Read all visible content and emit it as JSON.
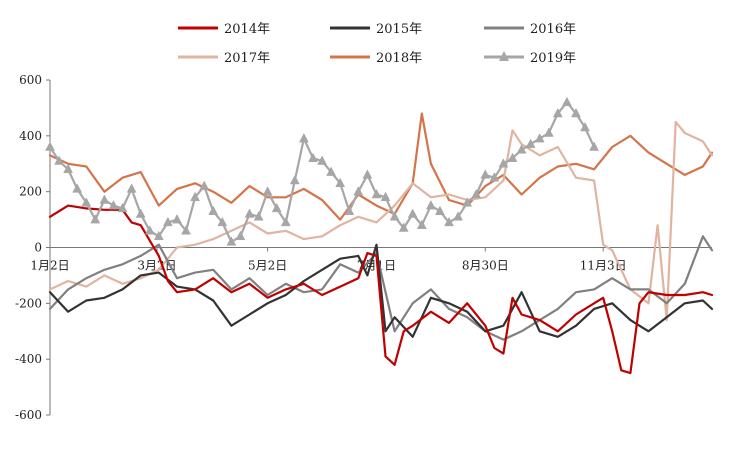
{
  "chart_data": {
    "type": "line",
    "title": "",
    "xlabel": "",
    "ylabel": "",
    "ylim": [
      -600,
      600
    ],
    "yticks": [
      "600",
      "400",
      "200",
      "0",
      "-200",
      "-400",
      "-600"
    ],
    "ytick_values": [
      600,
      400,
      200,
      0,
      -200,
      -400,
      -600
    ],
    "x_tick_labels": [
      "1月2日",
      "3月2日",
      "5月2日",
      "7月1日",
      "8月30日",
      "11月3日"
    ],
    "x_tick_days": [
      0,
      59,
      120,
      180,
      240,
      305
    ],
    "x_range_days": [
      0,
      365
    ],
    "grid": false,
    "legend_position": "top",
    "series": [
      {
        "name": "2014年",
        "color": "#c00000",
        "marker": "none",
        "x": [
          0,
          10,
          20,
          30,
          40,
          45,
          50,
          60,
          65,
          70,
          80,
          90,
          100,
          110,
          120,
          130,
          140,
          150,
          160,
          170,
          175,
          180,
          185,
          190,
          195,
          200,
          210,
          220,
          230,
          240,
          245,
          250,
          255,
          260,
          270,
          280,
          290,
          300,
          305,
          310,
          315,
          320,
          325,
          330,
          340,
          350,
          360,
          365
        ],
        "y": [
          110,
          150,
          140,
          135,
          135,
          90,
          80,
          -30,
          -120,
          -160,
          -150,
          -110,
          -160,
          -130,
          -180,
          -150,
          -130,
          -170,
          -140,
          -110,
          -20,
          -30,
          -390,
          -420,
          -300,
          -280,
          -230,
          -270,
          -200,
          -280,
          -360,
          -380,
          -180,
          -240,
          -260,
          -300,
          -240,
          -200,
          -180,
          -300,
          -440,
          -450,
          -200,
          -160,
          -170,
          -170,
          -160,
          -170
        ]
      },
      {
        "name": "2015年",
        "color": "#333333",
        "marker": "none",
        "x": [
          0,
          10,
          20,
          30,
          40,
          50,
          60,
          70,
          80,
          90,
          100,
          110,
          120,
          130,
          140,
          150,
          160,
          170,
          175,
          180,
          185,
          190,
          200,
          205,
          210,
          220,
          230,
          240,
          250,
          260,
          270,
          280,
          290,
          300,
          310,
          320,
          330,
          340,
          350,
          360,
          365
        ],
        "y": [
          -160,
          -230,
          -190,
          -180,
          -150,
          -100,
          -90,
          -140,
          -150,
          -190,
          -280,
          -240,
          -200,
          -170,
          -120,
          -80,
          -40,
          -30,
          -100,
          10,
          -300,
          -250,
          -320,
          -250,
          -180,
          -200,
          -230,
          -300,
          -280,
          -160,
          -300,
          -320,
          -280,
          -220,
          -200,
          -260,
          -300,
          -250,
          -200,
          -190,
          -220
        ]
      },
      {
        "name": "2016年",
        "color": "#808080",
        "marker": "none",
        "x": [
          0,
          10,
          20,
          30,
          40,
          50,
          60,
          70,
          80,
          90,
          100,
          110,
          120,
          130,
          140,
          150,
          160,
          170,
          180,
          190,
          200,
          210,
          220,
          230,
          240,
          250,
          260,
          270,
          280,
          290,
          300,
          310,
          320,
          330,
          340,
          350,
          360,
          365
        ],
        "y": [
          -220,
          -150,
          -110,
          -80,
          -60,
          -30,
          10,
          -110,
          -90,
          -80,
          -150,
          -110,
          -170,
          -130,
          -160,
          -150,
          -60,
          -90,
          -20,
          -300,
          -200,
          -150,
          -220,
          -250,
          -300,
          -330,
          -300,
          -260,
          -220,
          -160,
          -150,
          -110,
          -150,
          -150,
          -200,
          -130,
          40,
          -10
        ]
      },
      {
        "name": "2017年",
        "color": "#e0b4a0",
        "marker": "none",
        "x": [
          0,
          10,
          20,
          30,
          40,
          50,
          60,
          70,
          80,
          90,
          100,
          110,
          120,
          130,
          140,
          150,
          160,
          170,
          180,
          190,
          200,
          210,
          220,
          230,
          240,
          250,
          255,
          260,
          270,
          280,
          290,
          300,
          305,
          310,
          320,
          330,
          335,
          340,
          345,
          350,
          360,
          365
        ],
        "y": [
          -150,
          -120,
          -140,
          -100,
          -130,
          -110,
          -80,
          0,
          10,
          30,
          60,
          90,
          50,
          60,
          30,
          40,
          80,
          110,
          90,
          150,
          230,
          180,
          190,
          170,
          180,
          240,
          420,
          370,
          330,
          360,
          250,
          240,
          10,
          -10,
          -150,
          -200,
          80,
          -260,
          450,
          410,
          380,
          330
        ]
      },
      {
        "name": "2018年",
        "color": "#d4744a",
        "marker": "none",
        "x": [
          0,
          10,
          20,
          30,
          40,
          50,
          60,
          70,
          80,
          90,
          100,
          110,
          120,
          130,
          140,
          150,
          160,
          170,
          180,
          190,
          200,
          205,
          210,
          220,
          230,
          240,
          250,
          260,
          270,
          280,
          290,
          300,
          310,
          320,
          330,
          340,
          350,
          360,
          365
        ],
        "y": [
          330,
          300,
          290,
          200,
          250,
          270,
          150,
          210,
          230,
          200,
          160,
          220,
          180,
          180,
          210,
          170,
          100,
          190,
          150,
          120,
          230,
          480,
          300,
          170,
          150,
          220,
          260,
          190,
          250,
          290,
          300,
          280,
          360,
          400,
          340,
          300,
          260,
          290,
          340
        ]
      },
      {
        "name": "2019年",
        "color": "#a6a6a6",
        "marker": "triangle",
        "x": [
          0,
          5,
          10,
          15,
          20,
          25,
          30,
          35,
          40,
          45,
          50,
          55,
          60,
          65,
          70,
          75,
          80,
          85,
          90,
          95,
          100,
          105,
          110,
          115,
          120,
          125,
          130,
          135,
          140,
          145,
          150,
          155,
          160,
          165,
          170,
          175,
          180,
          185,
          190,
          195,
          200,
          205,
          210,
          215,
          220,
          225,
          230,
          235,
          240,
          245,
          250,
          255,
          260,
          265,
          270,
          275,
          280,
          285,
          290,
          295,
          300
        ],
        "y": [
          360,
          310,
          280,
          210,
          160,
          100,
          170,
          150,
          140,
          210,
          120,
          60,
          40,
          90,
          100,
          60,
          180,
          220,
          130,
          90,
          20,
          40,
          120,
          110,
          200,
          140,
          90,
          240,
          390,
          320,
          310,
          270,
          230,
          130,
          200,
          260,
          190,
          180,
          110,
          70,
          120,
          80,
          150,
          130,
          90,
          110,
          160,
          190,
          260,
          250,
          300,
          320,
          350,
          370,
          390,
          410,
          480,
          520,
          480,
          430,
          360
        ]
      }
    ]
  }
}
